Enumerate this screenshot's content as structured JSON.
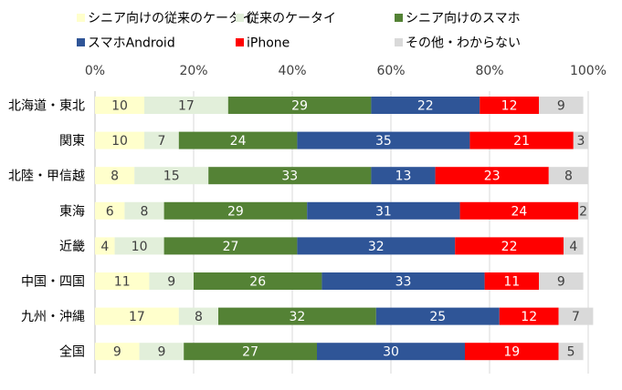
{
  "chart_data": {
    "type": "bar",
    "orientation": "horizontal",
    "stacked": true,
    "percent_stacked": true,
    "categories": [
      "北海道・東北",
      "関東",
      "北陸・甲信越",
      "東海",
      "近畿",
      "中国・四国",
      "九州・沖縄",
      "全国"
    ],
    "series": [
      {
        "name": "シニア向けの従来のケータイ",
        "color": "#ffffcc",
        "label_color": "#404040",
        "values": [
          10,
          10,
          8,
          6,
          4,
          11,
          17,
          9
        ]
      },
      {
        "name": "従来のケータイ",
        "color": "#e2efda",
        "label_color": "#404040",
        "values": [
          17,
          7,
          15,
          8,
          10,
          9,
          8,
          9
        ]
      },
      {
        "name": "シニア向けのスマホ",
        "color": "#548235",
        "label_color": "#ffffff",
        "values": [
          29,
          24,
          33,
          29,
          27,
          26,
          32,
          27
        ]
      },
      {
        "name": "スマホAndroid",
        "color": "#2f5597",
        "label_color": "#ffffff",
        "values": [
          22,
          35,
          13,
          31,
          32,
          33,
          25,
          30
        ]
      },
      {
        "name": "iPhone",
        "color": "#ff0000",
        "label_color": "#ffffff",
        "values": [
          12,
          21,
          23,
          24,
          22,
          11,
          12,
          19
        ]
      },
      {
        "name": "その他・わからない",
        "color": "#d9d9d9",
        "label_color": "#404040",
        "values": [
          9,
          3,
          8,
          2,
          4,
          9,
          7,
          5
        ]
      }
    ],
    "x_ticks": [
      "0%",
      "20%",
      "40%",
      "60%",
      "80%",
      "100%"
    ],
    "xlim": [
      0,
      100
    ],
    "legend_position": "top",
    "grid": "vertical"
  }
}
